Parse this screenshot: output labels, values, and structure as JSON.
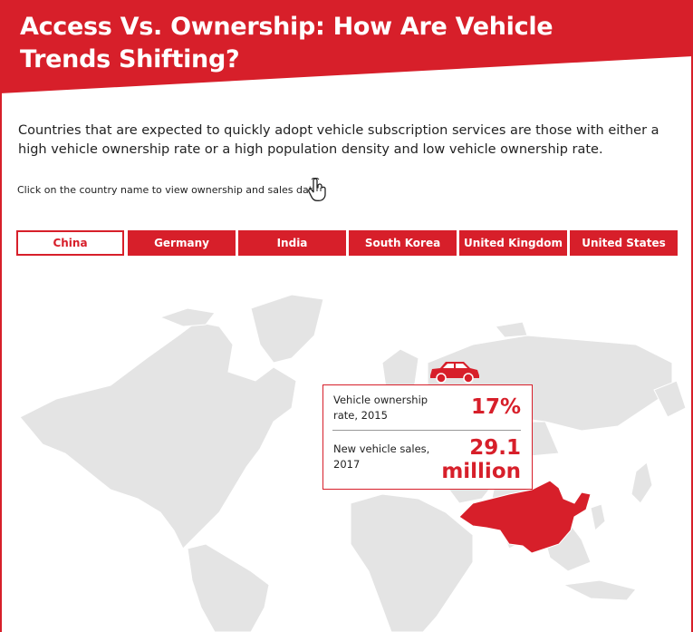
{
  "header": {
    "title_line1": "Access Vs. Ownership: How Are Vehicle",
    "title_line2": "Trends Shifting?",
    "banner_color": "#d71f2a"
  },
  "intro": "Countries that are expected to quickly adopt vehicle subscription services are those with either a high vehicle ownership rate or a high population density and low vehicle ownership rate.",
  "instruction": "Click on the country name to view ownership and sales data.",
  "instruction_icon": "pointer-hand-icon",
  "tabs": [
    {
      "label": "China",
      "active": true
    },
    {
      "label": "Germany",
      "active": false
    },
    {
      "label": "India",
      "active": false
    },
    {
      "label": "South Korea",
      "active": false
    },
    {
      "label": "United Kingdom",
      "active": false
    },
    {
      "label": "United States",
      "active": false
    }
  ],
  "selected_country": "China",
  "card": {
    "icon": "car-icon",
    "ownership_label": "Vehicle ownership rate, 2015",
    "ownership_value": "17%",
    "sales_label": "New vehicle sales, 2017",
    "sales_value_line1": "29.1",
    "sales_value_line2": "million"
  },
  "colors": {
    "accent": "#d71f2a",
    "map_land": "#e4e4e4",
    "highlight": "#d71f2a"
  }
}
